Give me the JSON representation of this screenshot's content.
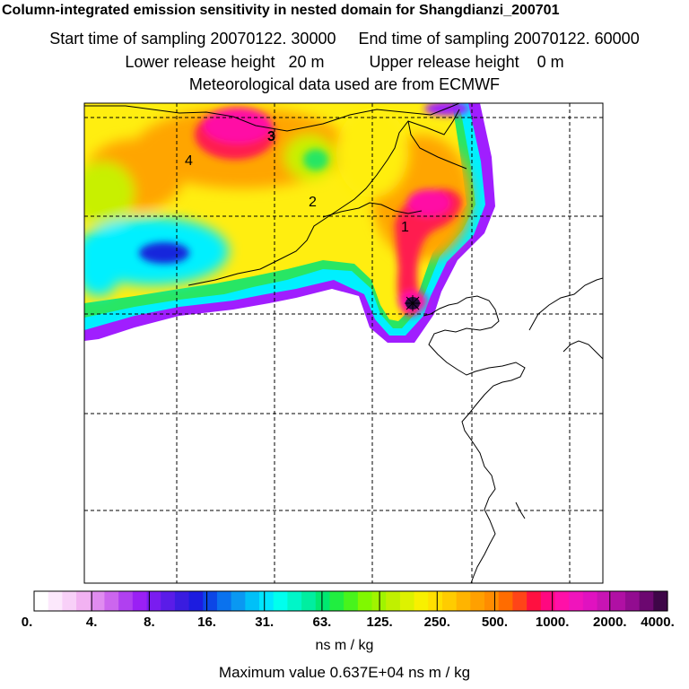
{
  "header": {
    "title": "Column-integrated emission sensitivity in nested domain for Shangdianzi_200701",
    "sampling_line": "Start time of sampling 20070122. 30000     End time of sampling 20070122. 60000",
    "release_line": "Lower release height   20 m          Upper release height    0 m",
    "met_line": "Meteorological data used are from ECMWF"
  },
  "map": {
    "region_labels": [
      "1",
      "2",
      "3",
      "4"
    ],
    "colors": {
      "magenta": "#ff0aa5",
      "red": "#ff1e50",
      "orange": "#ffa500",
      "yellow": "#ffee10",
      "yellowgreen": "#c8f000",
      "green": "#28e664",
      "cyan": "#00f0ff",
      "blue": "#1428dc",
      "violet": "#a01eff",
      "dark": "#2a0a40"
    }
  },
  "colorbar": {
    "tick_labels": [
      "0.",
      "4.",
      "8.",
      "16.",
      "31.",
      "63.",
      "125.",
      "250.",
      "500.",
      "1000.",
      "2000.",
      "4000."
    ],
    "colors": [
      "#ffffff",
      "#fce8fc",
      "#f8d0f8",
      "#f2b2f2",
      "#e08cf0",
      "#cc66ee",
      "#b040f0",
      "#9a20f4",
      "#7a1cf0",
      "#5a1ce8",
      "#3a1ce0",
      "#1c1ce0",
      "#0c46e6",
      "#0a72ee",
      "#0a98f2",
      "#00c0f8",
      "#00e6ff",
      "#00ffee",
      "#00f6c8",
      "#00eea0",
      "#00e870",
      "#20ee40",
      "#48f41c",
      "#80f800",
      "#a0f400",
      "#c0f000",
      "#ddf200",
      "#f8f000",
      "#ffe000",
      "#ffcc00",
      "#ffb400",
      "#ffa000",
      "#ff8c00",
      "#ff6c00",
      "#ff4418",
      "#ff1040",
      "#ff0880",
      "#ff10a8",
      "#f014bc",
      "#e012c0",
      "#c814b4",
      "#b010a4",
      "#920c90",
      "#6c0870",
      "#3e0648"
    ],
    "units": "ns m / kg",
    "max_line": "Maximum value  0.637E+04 ns m / kg"
  }
}
